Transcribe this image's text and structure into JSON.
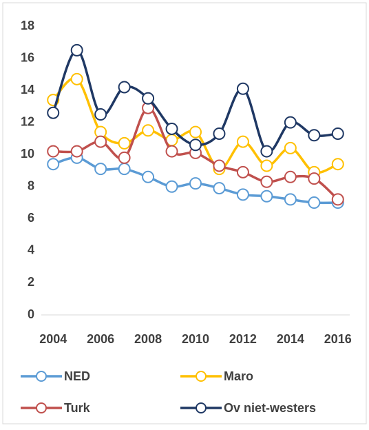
{
  "chart_data": {
    "type": "line",
    "x": [
      2004,
      2005,
      2006,
      2007,
      2008,
      2009,
      2010,
      2011,
      2012,
      2013,
      2014,
      2015,
      2016
    ],
    "series": [
      {
        "name": "NED",
        "color": "#5b9bd5",
        "values": [
          9.4,
          9.8,
          9.1,
          9.1,
          8.6,
          8.0,
          8.2,
          7.9,
          7.5,
          7.4,
          7.2,
          7.0,
          7.0
        ]
      },
      {
        "name": "Maro",
        "color": "#ffc000",
        "values": [
          13.4,
          14.7,
          11.4,
          10.7,
          11.5,
          10.9,
          11.4,
          9.1,
          10.8,
          9.3,
          10.4,
          8.9,
          9.4
        ]
      },
      {
        "name": "Turk",
        "color": "#c0504d",
        "values": [
          10.2,
          10.2,
          10.8,
          9.8,
          12.9,
          10.2,
          10.1,
          9.3,
          8.9,
          8.3,
          8.6,
          8.5,
          7.2
        ]
      },
      {
        "name": "Ov niet-westers",
        "color": "#1f3864",
        "values": [
          12.6,
          16.5,
          12.5,
          14.2,
          13.5,
          11.6,
          10.6,
          11.3,
          14.1,
          10.2,
          12.0,
          11.2,
          11.3
        ]
      }
    ],
    "xlim": [
      2003.5,
      2016.5
    ],
    "xticks": [
      2004,
      2006,
      2008,
      2010,
      2012,
      2014,
      2016
    ],
    "ylim": [
      0,
      18
    ],
    "yticks": [
      0,
      2,
      4,
      6,
      8,
      10,
      12,
      14,
      16,
      18
    ],
    "smooth": true,
    "grid": false
  }
}
